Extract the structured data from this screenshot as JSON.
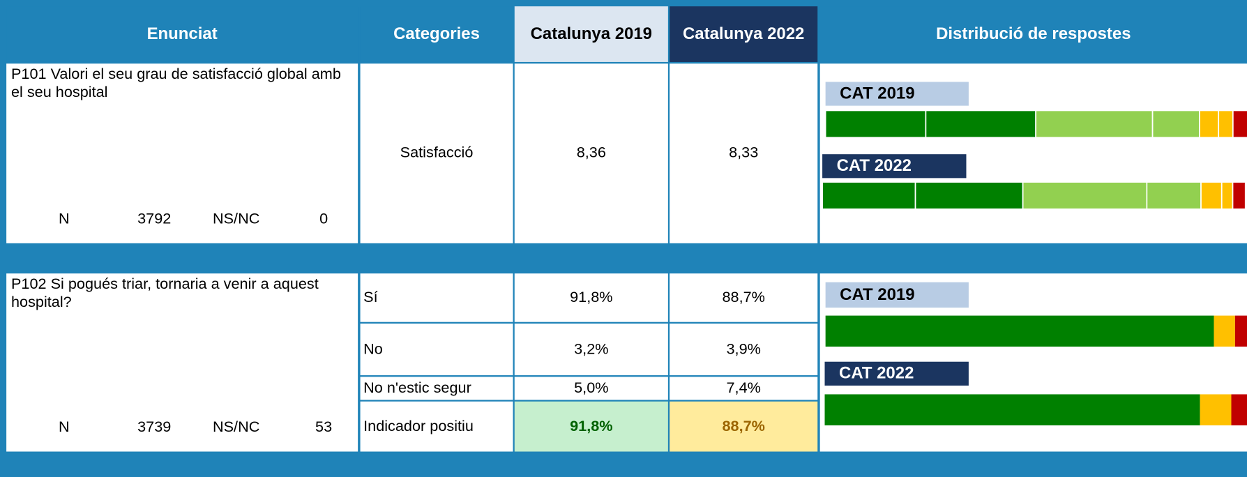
{
  "header": {
    "enunciat": "Enunciat",
    "categories": "Categories",
    "cat2019": "Catalunya 2019",
    "cat2022": "Catalunya 2022",
    "distribucio": "Distribució de respostes"
  },
  "questions": [
    {
      "text": "P101 Valori el seu grau de satisfacció global amb el seu hospital",
      "n_label": "N",
      "n": 3792,
      "nsnc_label": "NS/NC",
      "nsnc": 0,
      "rows": [
        [
          "Satisfacció",
          "8,36",
          "8,33"
        ]
      ],
      "charts": [
        {
          "label": "CAT 2019",
          "segments": [
            {
              "value": 23.7,
              "color": "#008000"
            },
            {
              "value": 26.0,
              "color": "#008000"
            },
            {
              "value": 27.6,
              "color": "#92d050"
            },
            {
              "value": 11.1,
              "color": "#92d050"
            },
            {
              "value": 4.5,
              "color": "#ffc000"
            },
            {
              "value": 3.4,
              "color": "#ffc000"
            },
            {
              "value": 3.7,
              "color": "#c00000"
            }
          ]
        },
        {
          "label": "CAT 2022",
          "segments": [
            {
              "value": 22.0,
              "color": "#008000"
            },
            {
              "value": 25.4,
              "color": "#008000"
            },
            {
              "value": 29.3,
              "color": "#92d050"
            },
            {
              "value": 12.8,
              "color": "#92d050"
            },
            {
              "value": 4.9,
              "color": "#ffc000"
            },
            {
              "value": 2.6,
              "color": "#ffc000"
            },
            {
              "value": 3.0,
              "color": "#c00000"
            }
          ]
        }
      ]
    },
    {
      "text": "P102 Si pogués triar, tornaria a venir a aquest hospital?",
      "n_label": "N",
      "n": 3739,
      "nsnc_label": "NS/NC",
      "nsnc": 53,
      "rows": [
        [
          "Sí",
          "91,8%",
          "88,7%"
        ],
        [
          "No",
          "3,2%",
          "3,9%"
        ],
        [
          "No n'estic segur",
          "5,0%",
          "7,4%"
        ]
      ],
      "indicator": [
        "Indicador positiu",
        "91,8%",
        "88,7%"
      ],
      "charts": [
        {
          "label": "CAT 2019",
          "segments": [
            {
              "value": 91.8,
              "color": "#008000"
            },
            {
              "value": 5.0,
              "color": "#ffc000"
            },
            {
              "value": 3.2,
              "color": "#c00000"
            }
          ]
        },
        {
          "label": "CAT 2022",
          "segments": [
            {
              "value": 88.7,
              "color": "#008000"
            },
            {
              "value": 7.4,
              "color": "#ffc000"
            },
            {
              "value": 3.9,
              "color": "#c00000"
            }
          ]
        }
      ]
    }
  ]
}
